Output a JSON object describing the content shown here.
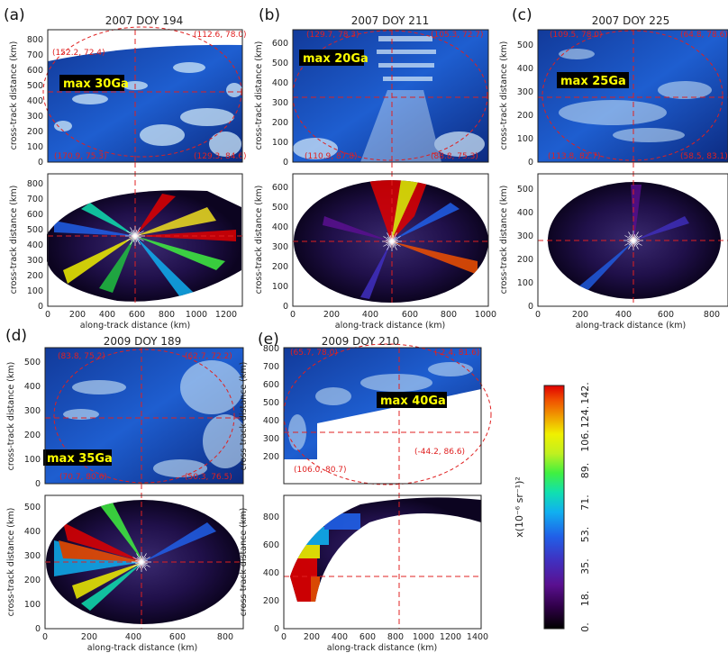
{
  "panels": [
    {
      "letter": "(a)",
      "title": "2007 DOY 194",
      "max_label": "max 30Ga",
      "corners": [
        "(152.2, 72.4)",
        "(112.6, 78.0)",
        "(170.9, 75.3)",
        "(129.3, 84.6)"
      ],
      "x_ticks": [
        "0",
        "200",
        "400",
        "600",
        "800",
        "1000",
        "1200"
      ],
      "top_y_ticks": [
        "0",
        "100",
        "200",
        "300",
        "400",
        "500",
        "600",
        "700",
        "800"
      ],
      "bot_y_ticks": [
        "0",
        "100",
        "200",
        "300",
        "400",
        "500",
        "600",
        "700",
        "800"
      ],
      "xlabel": "along-track distance (km)",
      "ylabel": "cross-track distance (km)"
    },
    {
      "letter": "(b)",
      "title": "2007 DOY 211",
      "max_label": "max 20Ga",
      "corners": [
        "(129.7, 78.3)",
        "(105.3, 72.7)",
        "(110.9, 87.8)",
        "(88.8, 75.3)"
      ],
      "x_ticks": [
        "0",
        "200",
        "400",
        "600",
        "800",
        "1000"
      ],
      "top_y_ticks": [
        "0",
        "100",
        "200",
        "300",
        "400",
        "500",
        "600"
      ],
      "bot_y_ticks": [
        "0",
        "100",
        "200",
        "300",
        "400",
        "500",
        "600"
      ],
      "xlabel": "along-track distance (km)",
      "ylabel": "cross-track distance (km)"
    },
    {
      "letter": "(c)",
      "title": "2007 DOY 225",
      "max_label": "max 25Ga",
      "corners": [
        "(109.5, 78.0)",
        "(64.8, 78.6)",
        "(113.8, 82.7)",
        "(58.5, 83.1)"
      ],
      "x_ticks": [
        "0",
        "200",
        "400",
        "600",
        "800"
      ],
      "top_y_ticks": [
        "0",
        "100",
        "200",
        "300",
        "400",
        "500"
      ],
      "bot_y_ticks": [
        "0",
        "100",
        "200",
        "300",
        "400",
        "500"
      ],
      "xlabel": "along-track distance (km)",
      "ylabel": "cross-track distance (km)"
    },
    {
      "letter": "(d)",
      "title": "2009 DOY 189",
      "max_label": "max 35Ga",
      "corners": [
        "(83.8, 75.2)",
        "(62.7, 72.2)",
        "(70.7, 80.6)",
        "(50.3, 76.5)"
      ],
      "x_ticks": [
        "0",
        "200",
        "400",
        "600",
        "800"
      ],
      "top_y_ticks": [
        "0",
        "100",
        "200",
        "300",
        "400",
        "500"
      ],
      "bot_y_ticks": [
        "0",
        "100",
        "200",
        "300",
        "400",
        "500"
      ],
      "xlabel": "along-track distance (km)",
      "ylabel": "cross-track distance (km)"
    },
    {
      "letter": "(e)",
      "title": "2009 DOY 210",
      "max_label": "max 40Ga",
      "corners": [
        "(65.7, 78.0)",
        "(-2.4, 81.6)",
        "(106.0, 80.7)",
        "(-44.2, 86.6)"
      ],
      "x_ticks": [
        "0",
        "200",
        "400",
        "600",
        "800",
        "1000",
        "1200",
        "1400"
      ],
      "top_y_ticks": [
        "200",
        "300",
        "400",
        "500",
        "600",
        "700",
        "800"
      ],
      "bot_y_ticks": [
        "0",
        "200",
        "400",
        "600",
        "800"
      ],
      "xlabel": "along-track distance (km)",
      "ylabel": "cross-track distance (km)"
    }
  ],
  "colorbar": {
    "ticks": [
      "0.",
      "18.",
      "35.",
      "53.",
      "71.",
      "89.",
      "106.",
      "124.",
      "142."
    ],
    "label": "x(10⁻⁶ sr⁻¹)²",
    "colors": [
      "#000000",
      "#300048",
      "#5a1090",
      "#4030c0",
      "#2060e8",
      "#10b0f0",
      "#10e0b0",
      "#40f040",
      "#c0f020",
      "#f0f000",
      "#f0a000",
      "#f05000",
      "#e00000"
    ]
  }
}
